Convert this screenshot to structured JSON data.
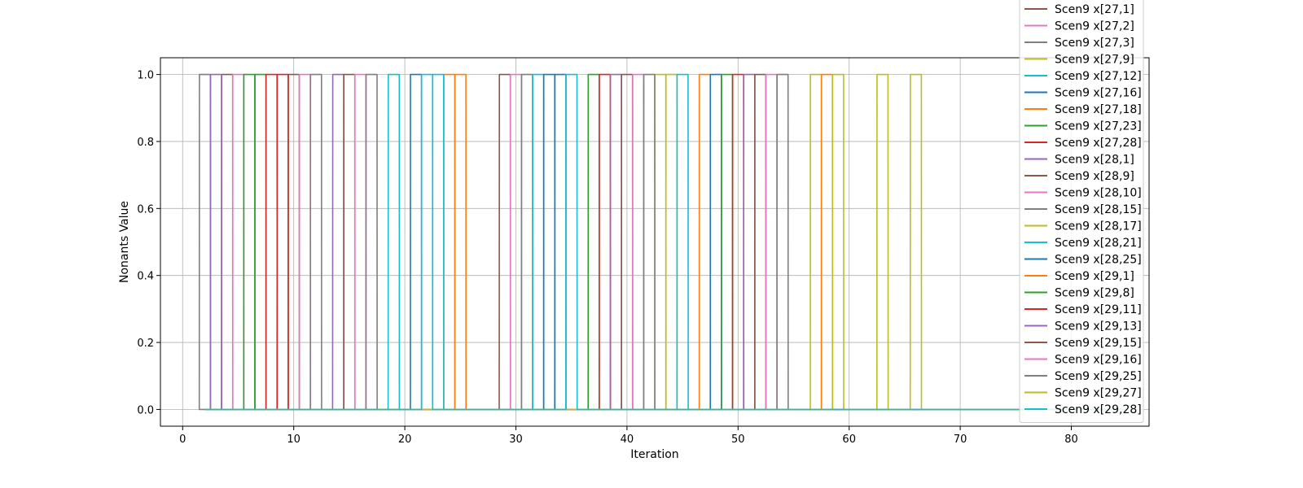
{
  "chart_data": {
    "type": "line",
    "title": "",
    "xlabel": "Iteration",
    "ylabel": "Nonants Value",
    "xlim": [
      -2,
      87
    ],
    "ylim": [
      -0.05,
      1.05
    ],
    "xticks": [
      0,
      10,
      20,
      30,
      40,
      50,
      60,
      70,
      80
    ],
    "yticks": [
      0.0,
      0.2,
      0.4,
      0.6,
      0.8,
      1.0
    ],
    "xtick_labels": [
      "0",
      "10",
      "20",
      "30",
      "40",
      "50",
      "60",
      "70",
      "80"
    ],
    "ytick_labels": [
      "0.0",
      "0.2",
      "0.4",
      "0.6",
      "0.8",
      "1.0"
    ],
    "grid": true,
    "legend_position": "upper right, extending above the axes",
    "x_start": 2,
    "x_end": 85,
    "series": [
      {
        "name": "Scen9 x[27,1]",
        "color": "#8c564b",
        "pulse_at": [
          4,
          29
        ]
      },
      {
        "name": "Scen9 x[27,2]",
        "color": "#e377c2",
        "pulse_at": [
          5,
          30
        ]
      },
      {
        "name": "Scen9 x[27,3]",
        "color": "#7f7f7f",
        "pulse_at": [
          2,
          31
        ]
      },
      {
        "name": "Scen9 x[27,9]",
        "color": "#bcbd22",
        "pulse_at": [
          43,
          57
        ]
      },
      {
        "name": "Scen9 x[27,12]",
        "color": "#17becf",
        "pulse_at": [
          19,
          32
        ]
      },
      {
        "name": "Scen9 x[27,16]",
        "color": "#1f77b4",
        "pulse_at": [
          21,
          34
        ]
      },
      {
        "name": "Scen9 x[27,18]",
        "color": "#ff7f0e",
        "pulse_at": [
          24,
          47
        ]
      },
      {
        "name": "Scen9 x[27,23]",
        "color": "#2ca02c",
        "pulse_at": [
          7,
          37
        ]
      },
      {
        "name": "Scen9 x[27,28]",
        "color": "#d62728",
        "pulse_at": [
          8,
          38
        ]
      },
      {
        "name": "Scen9 x[28,1]",
        "color": "#9467bd",
        "pulse_at": [
          3,
          39
        ]
      },
      {
        "name": "Scen9 x[28,9]",
        "color": "#8c564b",
        "pulse_at": [
          10,
          40
        ]
      },
      {
        "name": "Scen9 x[28,10]",
        "color": "#e377c2",
        "pulse_at": [
          11,
          41
        ]
      },
      {
        "name": "Scen9 x[28,15]",
        "color": "#7f7f7f",
        "pulse_at": [
          12,
          42
        ]
      },
      {
        "name": "Scen9 x[28,17]",
        "color": "#bcbd22",
        "pulse_at": [
          44,
          63
        ]
      },
      {
        "name": "Scen9 x[28,21]",
        "color": "#17becf",
        "pulse_at": [
          23,
          45
        ]
      },
      {
        "name": "Scen9 x[28,25]",
        "color": "#1f77b4",
        "pulse_at": [
          33,
          48
        ]
      },
      {
        "name": "Scen9 x[29,1]",
        "color": "#ff7f0e",
        "pulse_at": [
          25,
          58
        ]
      },
      {
        "name": "Scen9 x[29,8]",
        "color": "#2ca02c",
        "pulse_at": [
          6,
          49
        ]
      },
      {
        "name": "Scen9 x[29,11]",
        "color": "#d62728",
        "pulse_at": [
          9,
          50
        ]
      },
      {
        "name": "Scen9 x[29,13]",
        "color": "#9467bd",
        "pulse_at": [
          14,
          51
        ]
      },
      {
        "name": "Scen9 x[29,15]",
        "color": "#8c564b",
        "pulse_at": [
          15,
          52
        ]
      },
      {
        "name": "Scen9 x[29,16]",
        "color": "#e377c2",
        "pulse_at": [
          16,
          53
        ]
      },
      {
        "name": "Scen9 x[29,25]",
        "color": "#7f7f7f",
        "pulse_at": [
          17,
          54
        ]
      },
      {
        "name": "Scen9 x[29,27]",
        "color": "#bcbd22",
        "pulse_at": [
          59,
          66
        ]
      },
      {
        "name": "Scen9 x[29,28]",
        "color": "#17becf",
        "pulse_at": [
          22,
          35
        ]
      }
    ]
  }
}
